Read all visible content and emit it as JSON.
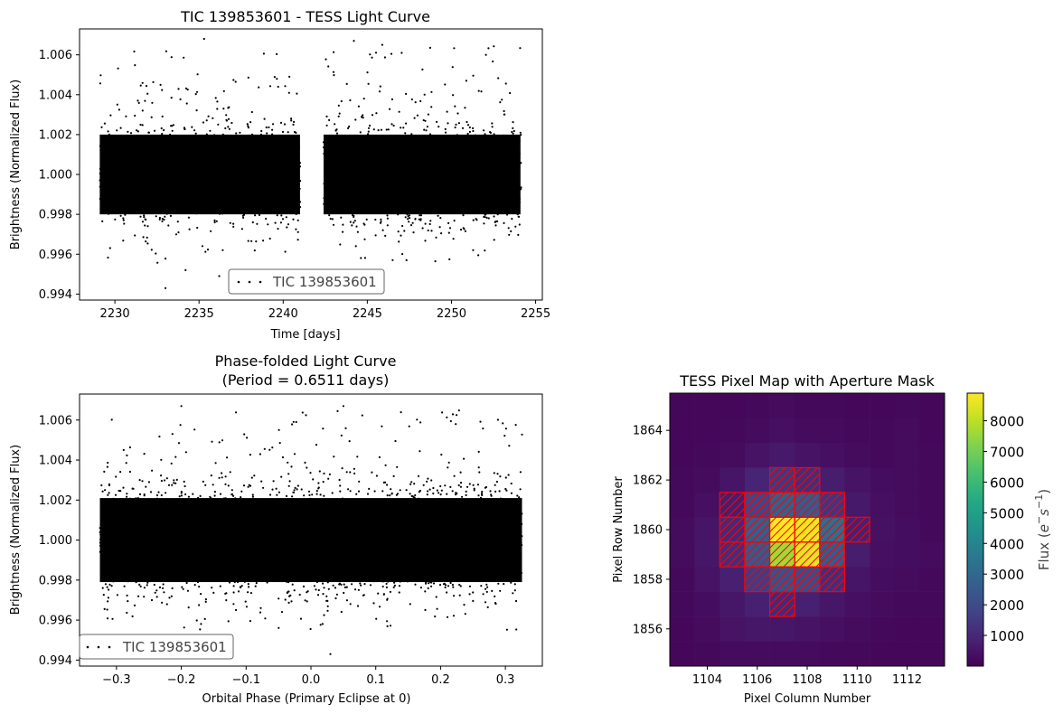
{
  "chart_data": [
    {
      "id": "lc",
      "type": "scatter",
      "title": "TIC 139853601 - TESS Light Curve",
      "xlabel": "Time [days]",
      "ylabel": "Brightness (Normalized Flux)",
      "xlim": [
        2227.9,
        2255.4
      ],
      "ylim": [
        0.9937,
        1.0073
      ],
      "xticks": [
        2230,
        2235,
        2240,
        2245,
        2250,
        2255
      ],
      "yticks": [
        0.994,
        0.996,
        0.998,
        1.0,
        1.002,
        1.004,
        1.006
      ],
      "ytick_labels": [
        "0.994",
        "0.996",
        "0.998",
        "1.000",
        "1.002",
        "1.004",
        "1.006"
      ],
      "legend": {
        "label": "TIC 139853601",
        "placement": "lower center"
      },
      "series": [
        {
          "name": "TIC 139853601",
          "color": "#000000",
          "segments": [
            {
              "x_start": 2229.1,
              "x_end": 2241.0
            },
            {
              "x_start": 2242.4,
              "x_end": 2254.1
            }
          ],
          "core_range": [
            0.9975,
            1.0025
          ],
          "scatter_range": [
            0.9955,
            1.0065
          ],
          "outliers": [
            [
              2233.0,
              0.9943
            ],
            [
              2234.2,
              0.9952
            ],
            [
              2235.3,
              1.0068
            ],
            [
              2244.2,
              1.0067
            ],
            [
              2236.2,
              0.9949
            ]
          ]
        }
      ]
    },
    {
      "id": "pf",
      "type": "scatter",
      "title": "Phase-folded Light Curve",
      "subtitle": "(Period = 0.6511 days)",
      "xlabel": "Orbital Phase (Primary Eclipse at 0)",
      "ylabel": "Brightness (Normalized Flux)",
      "xlim": [
        -0.357,
        0.357
      ],
      "ylim": [
        0.9937,
        1.0073
      ],
      "xticks": [
        -0.3,
        -0.2,
        -0.1,
        0.0,
        0.1,
        0.2,
        0.3
      ],
      "xtick_labels": [
        "−0.3",
        "−0.2",
        "−0.1",
        "0.0",
        "0.1",
        "0.2",
        "0.3"
      ],
      "yticks": [
        0.994,
        0.996,
        0.998,
        1.0,
        1.002,
        1.004,
        1.006
      ],
      "ytick_labels": [
        "0.994",
        "0.996",
        "0.998",
        "1.000",
        "1.002",
        "1.004",
        "1.006"
      ],
      "legend": {
        "label": "TIC 139853601",
        "placement": "lower left"
      },
      "series": [
        {
          "name": "TIC 139853601",
          "color": "#000000",
          "x_range": [
            -0.3256,
            0.3256
          ],
          "core_range": [
            0.9975,
            1.0025
          ],
          "scatter_range": [
            0.9955,
            1.0065
          ],
          "outliers": [
            [
              -0.2,
              1.0067
            ],
            [
              0.05,
              1.0067
            ],
            [
              0.03,
              0.9943
            ]
          ]
        }
      ]
    },
    {
      "id": "pm",
      "type": "heatmap",
      "title": "TESS Pixel Map with Aperture Mask",
      "xlabel": "Pixel Column Number",
      "ylabel": "Pixel Row Number",
      "xlim": [
        1102.5,
        1113.5
      ],
      "ylim": [
        1854.5,
        1865.5
      ],
      "xticks": [
        1104,
        1106,
        1108,
        1110,
        1112
      ],
      "yticks": [
        1856,
        1858,
        1860,
        1862,
        1864
      ],
      "colormap": "viridis",
      "vmin": 0,
      "vmax": 8900,
      "colorbar": {
        "label": "Flux ($e^{-}s^{-1}$)",
        "label_base": "Flux (",
        "label_e": "e",
        "label_sup1": "−",
        "label_s": "s",
        "label_sup2": "−1",
        "label_close": ")",
        "ticks": [
          1000,
          2000,
          3000,
          4000,
          5000,
          6000,
          7000,
          8000
        ]
      },
      "columns": [
        1103,
        1104,
        1105,
        1106,
        1107,
        1108,
        1109,
        1110,
        1111,
        1112,
        1113
      ],
      "rows_top_to_bottom": [
        1865,
        1864,
        1863,
        1862,
        1861,
        1860,
        1859,
        1858,
        1857,
        1856,
        1855
      ],
      "values": [
        [
          150,
          150,
          150,
          200,
          250,
          200,
          200,
          150,
          150,
          200,
          150
        ],
        [
          150,
          150,
          200,
          250,
          350,
          250,
          250,
          200,
          200,
          250,
          150
        ],
        [
          150,
          200,
          250,
          450,
          600,
          450,
          350,
          250,
          200,
          250,
          200
        ],
        [
          200,
          250,
          500,
          900,
          1400,
          1100,
          700,
          450,
          300,
          250,
          200
        ],
        [
          200,
          350,
          700,
          1800,
          2700,
          2500,
          1300,
          600,
          350,
          250,
          200
        ],
        [
          250,
          500,
          1000,
          2600,
          8900,
          8700,
          3200,
          800,
          400,
          300,
          200
        ],
        [
          250,
          550,
          1100,
          2400,
          7600,
          8600,
          2500,
          700,
          350,
          300,
          250
        ],
        [
          200,
          450,
          800,
          1500,
          2200,
          2000,
          1100,
          500,
          300,
          250,
          200
        ],
        [
          200,
          300,
          550,
          800,
          1000,
          800,
          550,
          350,
          250,
          200,
          200
        ],
        [
          150,
          250,
          450,
          550,
          550,
          450,
          350,
          250,
          200,
          150,
          150
        ],
        [
          150,
          200,
          250,
          250,
          250,
          250,
          200,
          200,
          150,
          150,
          150
        ]
      ],
      "aperture_mask": {
        "edge_color": "#ff0000",
        "pixels": [
          [
            1107,
            1862
          ],
          [
            1108,
            1862
          ],
          [
            1105,
            1861
          ],
          [
            1106,
            1861
          ],
          [
            1107,
            1861
          ],
          [
            1108,
            1861
          ],
          [
            1109,
            1861
          ],
          [
            1105,
            1860
          ],
          [
            1106,
            1860
          ],
          [
            1107,
            1860
          ],
          [
            1108,
            1860
          ],
          [
            1109,
            1860
          ],
          [
            1110,
            1860
          ],
          [
            1105,
            1859
          ],
          [
            1106,
            1859
          ],
          [
            1107,
            1859
          ],
          [
            1108,
            1859
          ],
          [
            1109,
            1859
          ],
          [
            1106,
            1858
          ],
          [
            1107,
            1858
          ],
          [
            1108,
            1858
          ],
          [
            1109,
            1858
          ],
          [
            1107,
            1857
          ]
        ]
      }
    }
  ]
}
